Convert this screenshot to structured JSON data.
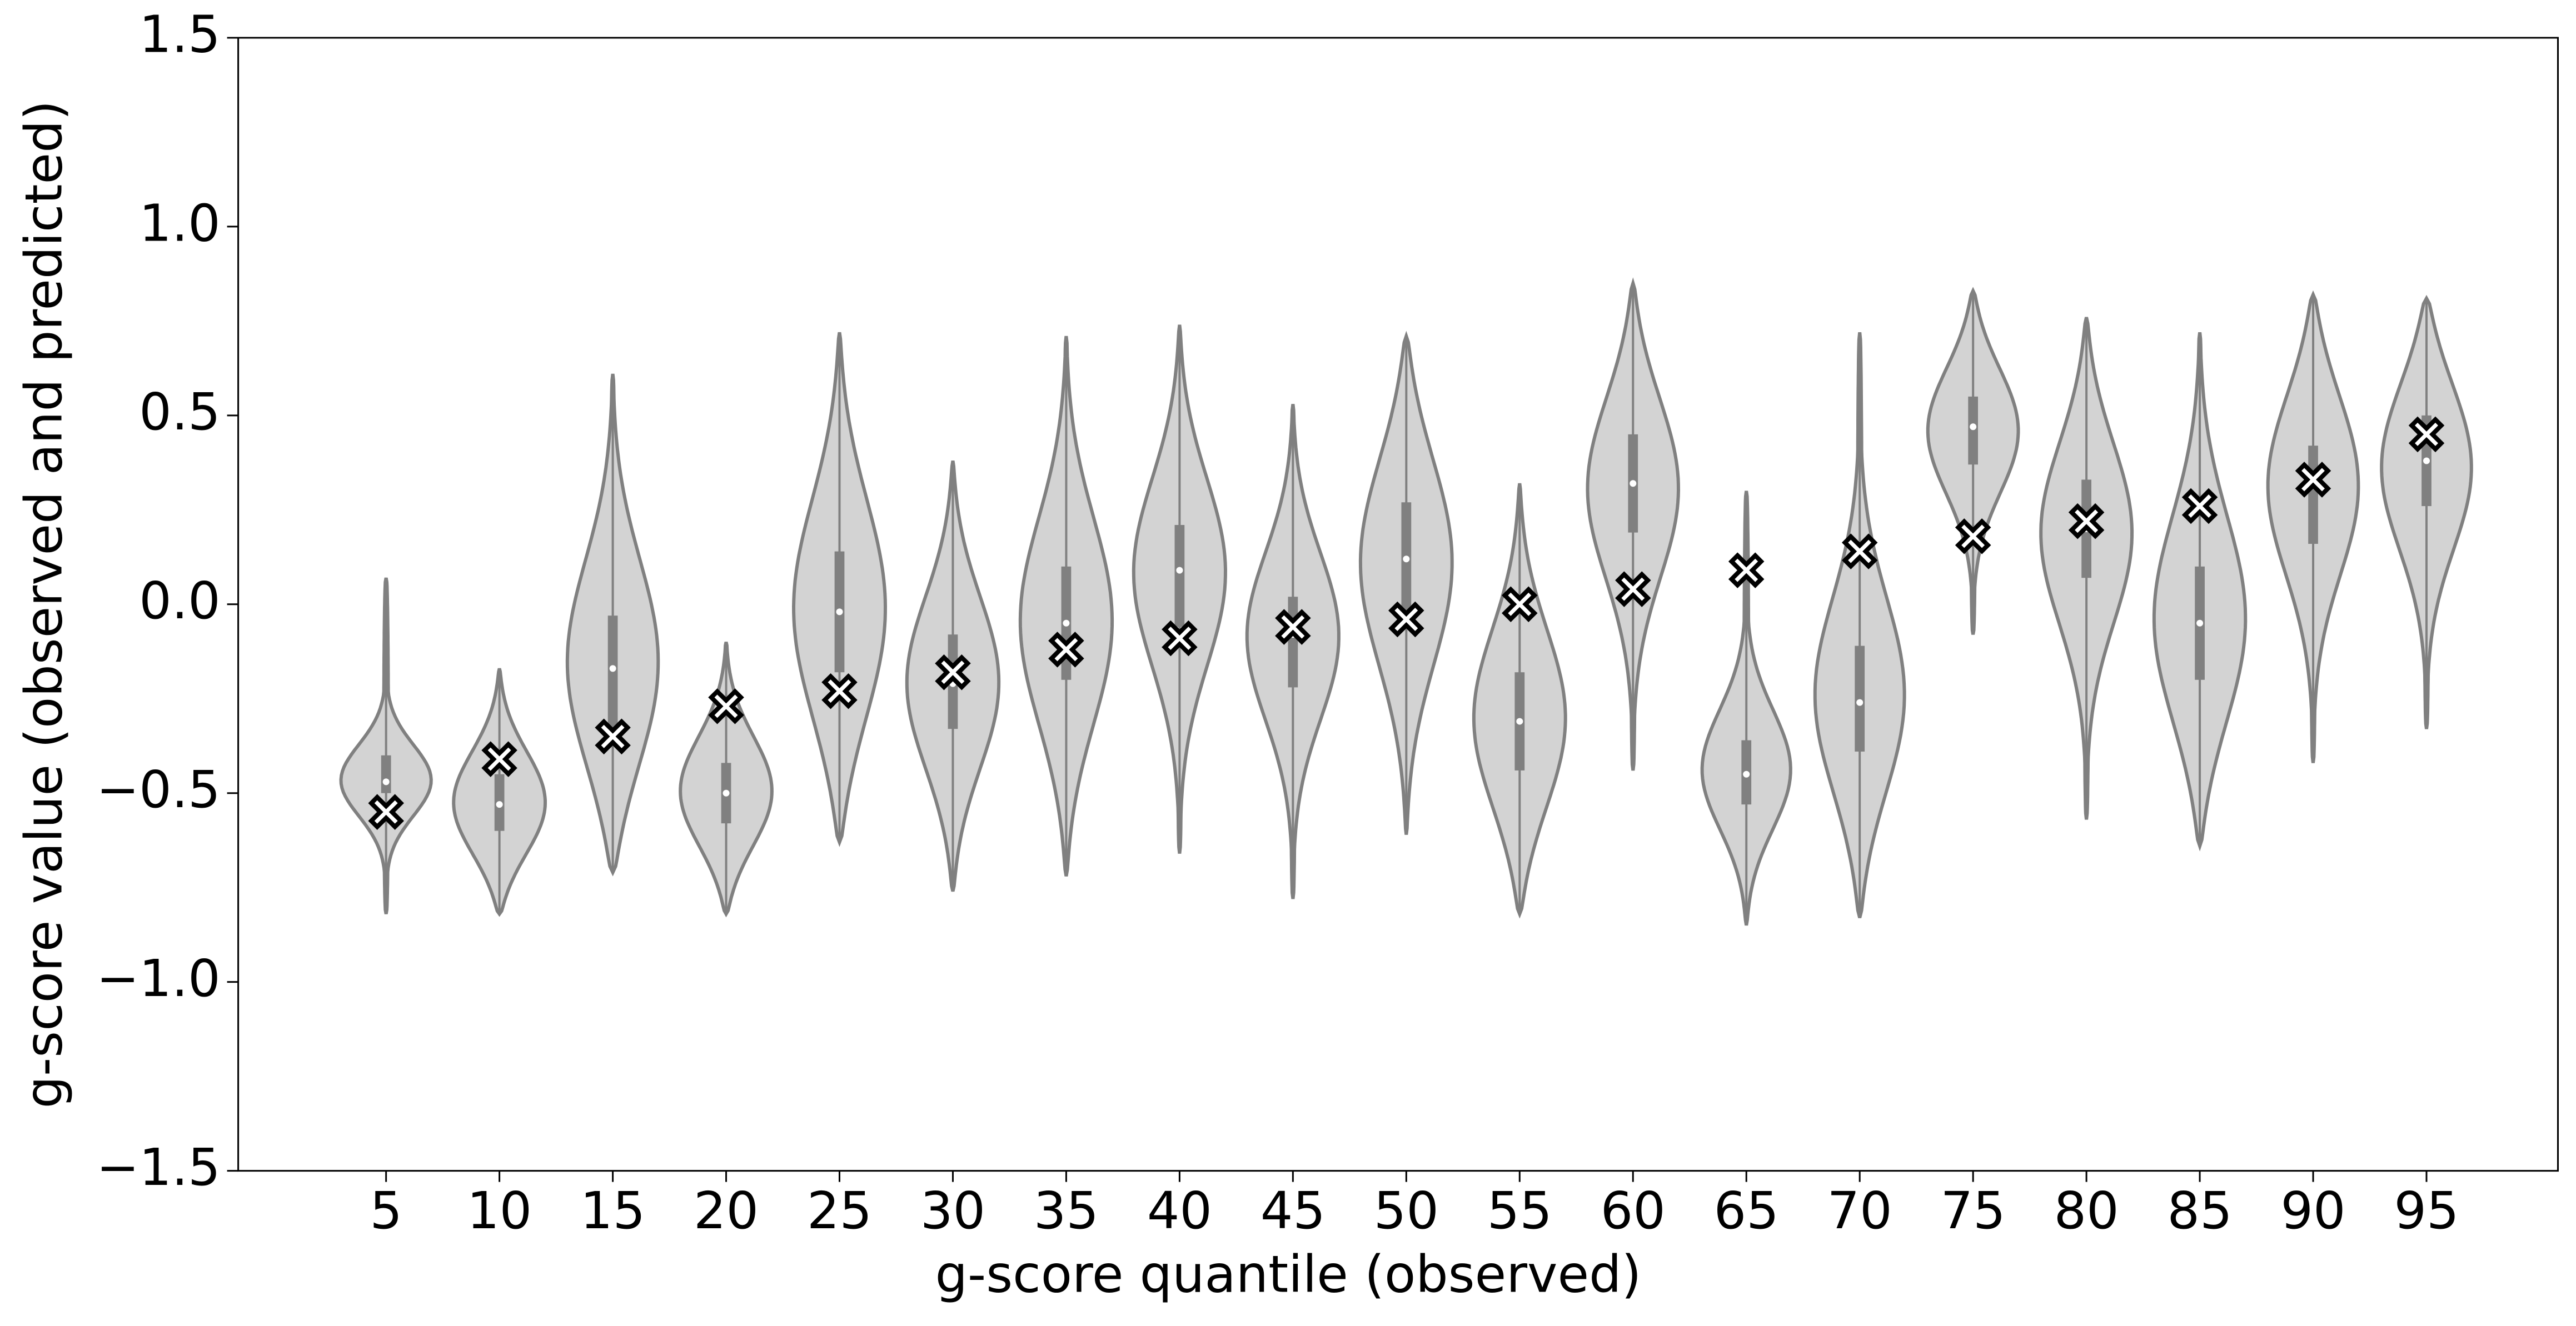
{
  "chart_data": {
    "type": "violin",
    "xlabel": "g-score quantile (observed)",
    "ylabel": "g-score value (observed and predicted)",
    "categories": [
      "5",
      "10",
      "15",
      "20",
      "25",
      "30",
      "35",
      "40",
      "45",
      "50",
      "55",
      "60",
      "65",
      "70",
      "75",
      "80",
      "85",
      "90",
      "95"
    ],
    "violins": {
      "fill": "#d3d3d3",
      "edge": "#808080",
      "min": [
        -0.82,
        -0.82,
        -0.71,
        -0.82,
        -0.63,
        -0.76,
        -0.72,
        -0.66,
        -0.78,
        -0.61,
        -0.82,
        -0.44,
        -0.85,
        -0.83,
        -0.08,
        -0.57,
        -0.64,
        -0.42,
        -0.33
      ],
      "q1": [
        -0.5,
        -0.6,
        -0.33,
        -0.58,
        -0.18,
        -0.33,
        -0.2,
        -0.06,
        -0.22,
        -0.03,
        -0.44,
        0.19,
        -0.53,
        -0.39,
        0.37,
        0.07,
        -0.2,
        0.16,
        0.26
      ],
      "median": [
        -0.47,
        -0.53,
        -0.17,
        -0.5,
        -0.02,
        -0.21,
        -0.05,
        0.09,
        -0.08,
        0.12,
        -0.31,
        0.32,
        -0.45,
        -0.26,
        0.47,
        0.2,
        -0.05,
        0.33,
        0.38
      ],
      "q3": [
        -0.4,
        -0.45,
        -0.03,
        -0.42,
        0.14,
        -0.08,
        0.1,
        0.21,
        0.02,
        0.27,
        -0.18,
        0.45,
        -0.36,
        -0.11,
        0.55,
        0.33,
        0.1,
        0.42,
        0.5
      ],
      "max": [
        0.07,
        -0.17,
        0.61,
        -0.1,
        0.72,
        0.38,
        0.71,
        0.74,
        0.53,
        0.71,
        0.32,
        0.85,
        0.3,
        0.72,
        0.83,
        0.76,
        0.72,
        0.82,
        0.81
      ]
    },
    "markers": {
      "fill": "#ffffff",
      "edge": "#000000",
      "values": [
        -0.55,
        -0.41,
        -0.35,
        -0.27,
        -0.23,
        -0.18,
        -0.12,
        -0.09,
        -0.06,
        -0.04,
        0.0,
        0.04,
        0.09,
        0.14,
        0.18,
        0.22,
        0.26,
        0.33,
        0.45
      ]
    },
    "ylim": [
      -1.5,
      1.5
    ],
    "yticks": [
      {
        "value": -1.5,
        "label": "−1.5"
      },
      {
        "value": -1.0,
        "label": "−1.0"
      },
      {
        "value": -0.5,
        "label": "−0.5"
      },
      {
        "value": 0,
        "label": "0.0"
      },
      0.5,
      1.5,
      {
        "value": 1.0,
        "label": "1.0"
      }
    ]
  }
}
